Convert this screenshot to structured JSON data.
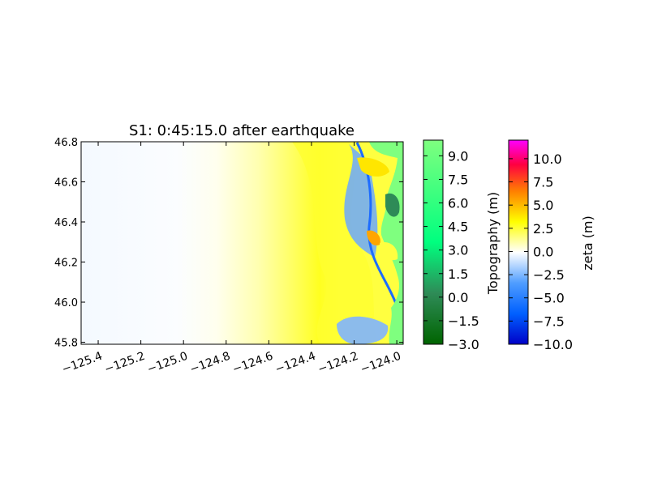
{
  "chart_data": {
    "type": "heatmap",
    "title": "S1: 0:45:15.0 after earthquake",
    "xlabel": "",
    "ylabel": "",
    "xlim": [
      -125.48,
      -123.97
    ],
    "ylim": [
      45.79,
      46.8
    ],
    "x_ticks": [
      -125.4,
      -125.2,
      -125.0,
      -124.8,
      -124.6,
      -124.4,
      -124.2,
      -124.0
    ],
    "x_tick_labels": [
      "−125.4",
      "−125.2",
      "−125.0",
      "−124.8",
      "−124.6",
      "−124.4",
      "−124.2",
      "−124.0"
    ],
    "y_ticks": [
      45.8,
      46.0,
      46.2,
      46.4,
      46.6,
      46.8
    ],
    "y_tick_labels": [
      "45.8",
      "46.0",
      "46.2",
      "46.4",
      "46.6",
      "46.8"
    ],
    "grid": false,
    "fields": [
      {
        "name": "zeta",
        "description_note": "surface elevation field; positive (yellow) band offshore, negative (blue) trough along coast",
        "range": [
          -10.0,
          12.0
        ]
      },
      {
        "name": "Topography",
        "range": [
          -3.0,
          10.0
        ]
      }
    ],
    "colorbars": [
      {
        "label": "Topography (m)",
        "ticks": [
          -3.0,
          -1.5,
          0.0,
          1.5,
          3.0,
          4.5,
          6.0,
          7.5,
          9.0
        ],
        "tick_labels": [
          "−3.0",
          "−1.5",
          "0.0",
          "1.5",
          "3.0",
          "4.5",
          "6.0",
          "7.5",
          "9.0"
        ],
        "range": [
          -3.0,
          10.0
        ],
        "colors": [
          "#006400",
          "#2e8b57",
          "#00ff7f",
          "#7fff7f"
        ]
      },
      {
        "label": "zeta (m)",
        "ticks": [
          -10.0,
          -7.5,
          -5.0,
          -2.5,
          0.0,
          2.5,
          5.0,
          7.5,
          10.0
        ],
        "tick_labels": [
          "−10.0",
          "−7.5",
          "−5.0",
          "−2.5",
          "0.0",
          "2.5",
          "5.0",
          "7.5",
          "10.0"
        ],
        "range": [
          -10.0,
          12.0
        ],
        "colors": [
          "#0000c8",
          "#0060ff",
          "#4f9dff",
          "#ffffff",
          "#ffff00",
          "#ff7f00",
          "#ff0040",
          "#ff00ff"
        ]
      }
    ]
  }
}
